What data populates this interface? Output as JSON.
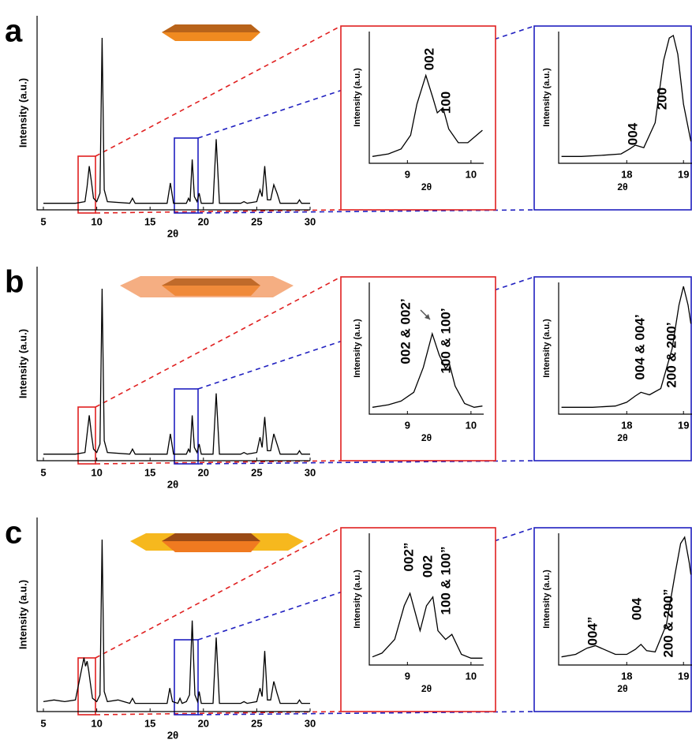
{
  "chart_data": [
    {
      "type": "line",
      "panel": "a",
      "xlabel": "2θ",
      "ylabel": "Intensity (a.u.)",
      "xlim": [
        5,
        30
      ],
      "xticks": [
        5,
        10,
        15,
        20,
        25,
        30
      ],
      "ylim": [
        0,
        100
      ],
      "color": "#000000",
      "x": [
        5,
        8,
        8.9,
        9.1,
        9.3,
        9.5,
        9.7,
        10.0,
        10.3,
        10.5,
        10.7,
        11,
        13.1,
        13.35,
        13.6,
        16.6,
        16.9,
        17.2,
        18.4,
        18.6,
        18.75,
        18.95,
        19.15,
        19.4,
        19.6,
        19.8,
        20.9,
        21.2,
        21.5,
        23.5,
        23.8,
        24.1,
        25.0,
        25.3,
        25.5,
        25.75,
        26.0,
        26.3,
        26.6,
        26.9,
        27.2,
        28.8,
        29.0,
        29.2,
        30
      ],
      "values": [
        2,
        2,
        3,
        12,
        24,
        15,
        5,
        3,
        8,
        100,
        10,
        3,
        2,
        5,
        2,
        2,
        14,
        2,
        2,
        5,
        3,
        28,
        6,
        3,
        8,
        2,
        2,
        40,
        2,
        2,
        3,
        2,
        3,
        10,
        6,
        24,
        4,
        4,
        13,
        8,
        2,
        2,
        4,
        2,
        2
      ]
    },
    {
      "type": "line",
      "xlabel": "2θ",
      "ylabel": "Intensity (a.u.)",
      "xlim": [
        8.4,
        10.2
      ],
      "xticks": [
        9,
        10
      ],
      "ylim": [
        0,
        100
      ],
      "color": "#000000",
      "annotations": [
        "002",
        "100"
      ],
      "x": [
        8.45,
        8.7,
        8.9,
        9.05,
        9.15,
        9.29,
        9.4,
        9.47,
        9.56,
        9.65,
        9.8,
        9.95,
        10.18
      ],
      "values": [
        3,
        5,
        9,
        20,
        45,
        68,
        50,
        38,
        42,
        25,
        14,
        14,
        24
      ]
    },
    {
      "type": "line",
      "xlabel": "2θ",
      "ylabel": "Intensity (a.u.)",
      "xlim": [
        16.8,
        19.15
      ],
      "xticks": [
        18,
        19
      ],
      "ylim": [
        0,
        100
      ],
      "color": "#000000",
      "annotations": [
        "004",
        "200"
      ],
      "x": [
        16.85,
        17.2,
        17.6,
        17.9,
        18.05,
        18.15,
        18.3,
        18.5,
        18.65,
        18.75,
        18.82,
        18.9,
        19.0,
        19.13
      ],
      "values": [
        3,
        3,
        4,
        5,
        9,
        12,
        10,
        30,
        80,
        98,
        100,
        85,
        45,
        15
      ]
    },
    {
      "type": "line",
      "panel": "b",
      "xlabel": "2θ",
      "ylabel": "Intensity (a.u.)",
      "xlim": [
        5,
        30
      ],
      "xticks": [
        5,
        10,
        15,
        20,
        25,
        30
      ],
      "ylim": [
        0,
        100
      ],
      "color": "#000000",
      "x": [
        5,
        8,
        8.9,
        9.1,
        9.3,
        9.5,
        9.7,
        10.0,
        10.3,
        10.5,
        10.7,
        11,
        13.1,
        13.35,
        13.6,
        16.6,
        16.9,
        17.2,
        18.4,
        18.6,
        18.75,
        18.95,
        19.15,
        19.4,
        19.6,
        19.8,
        20.9,
        21.2,
        21.5,
        23.5,
        23.8,
        24.1,
        25.0,
        25.3,
        25.5,
        25.75,
        26.0,
        26.3,
        26.6,
        26.9,
        27.2,
        28.8,
        29.0,
        29.2,
        30
      ],
      "values": [
        2,
        2,
        3,
        14,
        25,
        14,
        5,
        3,
        8,
        100,
        10,
        3,
        2,
        5,
        2,
        2,
        14,
        2,
        2,
        5,
        3,
        25,
        6,
        3,
        8,
        2,
        2,
        38,
        2,
        2,
        3,
        2,
        3,
        12,
        6,
        24,
        4,
        4,
        14,
        8,
        2,
        2,
        4,
        2,
        2
      ]
    },
    {
      "type": "line",
      "xlabel": "2θ",
      "ylabel": "Intensity (a.u.)",
      "xlim": [
        8.4,
        10.2
      ],
      "xticks": [
        9,
        10
      ],
      "ylim": [
        0,
        100
      ],
      "color": "#000000",
      "annotations": [
        "002 & 002’",
        "100 & 100’"
      ],
      "x": [
        8.45,
        8.7,
        8.9,
        9.1,
        9.25,
        9.39,
        9.5,
        9.6,
        9.66,
        9.75,
        9.9,
        10.05,
        10.18
      ],
      "values": [
        3,
        5,
        8,
        15,
        35,
        62,
        45,
        34,
        38,
        20,
        6,
        3,
        4
      ]
    },
    {
      "type": "line",
      "xlabel": "2θ",
      "ylabel": "Intensity (a.u.)",
      "xlim": [
        16.8,
        19.15
      ],
      "xticks": [
        18,
        19
      ],
      "ylim": [
        0,
        100
      ],
      "color": "#000000",
      "annotations": [
        "004 & 004’",
        "200 & 200’"
      ],
      "x": [
        16.85,
        17.4,
        17.8,
        18.0,
        18.15,
        18.25,
        18.4,
        18.6,
        18.8,
        18.92,
        19.0,
        19.08,
        19.13
      ],
      "values": [
        3,
        3,
        4,
        7,
        12,
        15,
        13,
        18,
        50,
        85,
        100,
        85,
        70
      ]
    },
    {
      "type": "line",
      "panel": "c",
      "xlabel": "2θ",
      "ylabel": "Intensity (a.u.)",
      "xlim": [
        5,
        30
      ],
      "xticks": [
        5,
        10,
        15,
        20,
        25,
        30
      ],
      "ylim": [
        0,
        100
      ],
      "color": "#000000",
      "x": [
        5,
        6,
        7,
        8,
        8.8,
        8.95,
        9.1,
        9.25,
        9.4,
        9.6,
        10.0,
        10.3,
        10.5,
        10.7,
        11,
        12,
        13.1,
        13.35,
        13.6,
        16.6,
        16.85,
        17.1,
        17.6,
        17.8,
        18.0,
        18.4,
        18.7,
        18.95,
        19.2,
        19.45,
        19.6,
        19.8,
        20.9,
        21.2,
        21.5,
        23.5,
        23.8,
        24.1,
        25.0,
        25.3,
        25.5,
        25.75,
        26.0,
        26.3,
        26.6,
        26.9,
        27.2,
        28.8,
        29.0,
        29.2,
        30
      ],
      "values": [
        4,
        5,
        4,
        5,
        30,
        25,
        28,
        22,
        15,
        6,
        4,
        8,
        100,
        10,
        4,
        5,
        3,
        6,
        3,
        3,
        12,
        4,
        3,
        6,
        3,
        4,
        8,
        52,
        8,
        4,
        10,
        3,
        3,
        42,
        3,
        3,
        4,
        3,
        4,
        12,
        7,
        34,
        5,
        5,
        16,
        9,
        3,
        3,
        5,
        3,
        3
      ]
    },
    {
      "type": "line",
      "xlabel": "2θ",
      "ylabel": "Intensity (a.u.)",
      "xlim": [
        8.4,
        10.2
      ],
      "xticks": [
        9,
        10
      ],
      "ylim": [
        0,
        100
      ],
      "color": "#000000",
      "annotations": [
        "002”",
        "002",
        "100 & 100”"
      ],
      "x": [
        8.45,
        8.6,
        8.8,
        8.95,
        9.04,
        9.12,
        9.2,
        9.3,
        9.4,
        9.48,
        9.6,
        9.7,
        9.85,
        10.0,
        10.18
      ],
      "values": [
        4,
        7,
        18,
        45,
        55,
        40,
        25,
        45,
        52,
        25,
        18,
        22,
        6,
        3,
        3
      ]
    },
    {
      "type": "line",
      "xlabel": "2θ",
      "ylabel": "Intensity (a.u.)",
      "xlim": [
        16.8,
        19.15
      ],
      "xticks": [
        18,
        19
      ],
      "ylim": [
        0,
        100
      ],
      "color": "#000000",
      "annotations": [
        "004”",
        "004",
        "200 & 200”"
      ],
      "x": [
        16.85,
        17.1,
        17.3,
        17.45,
        17.6,
        17.8,
        18.0,
        18.15,
        18.25,
        18.35,
        18.5,
        18.7,
        18.85,
        18.95,
        19.02,
        19.1,
        19.13
      ],
      "values": [
        4,
        6,
        11,
        13,
        10,
        6,
        6,
        10,
        14,
        9,
        8,
        30,
        70,
        95,
        100,
        80,
        70
      ]
    }
  ]
}
